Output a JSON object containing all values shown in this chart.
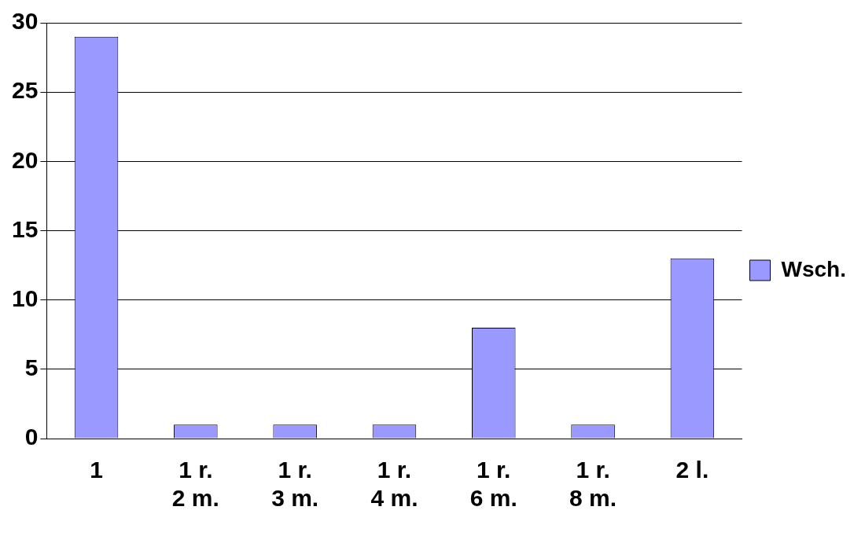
{
  "chart_data": {
    "type": "bar",
    "categories": [
      "1",
      "1 r. 2 m.",
      "1 r. 3 m.",
      "1 r. 4 m.",
      "1 r. 6 m.",
      "1 r. 8 m.",
      "2 l."
    ],
    "series": [
      {
        "name": "Wsch.",
        "color": "#9999ff",
        "values": [
          29,
          1,
          1,
          1,
          8,
          1,
          13
        ]
      }
    ],
    "ylim": [
      0,
      30
    ],
    "yticks": [
      0,
      5,
      10,
      15,
      20,
      25,
      30
    ],
    "grid": "y",
    "legend": "right"
  }
}
